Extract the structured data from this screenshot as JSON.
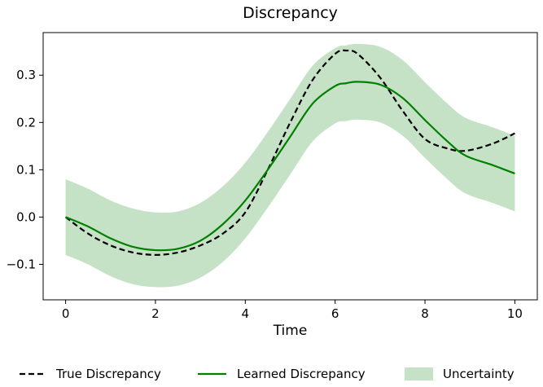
{
  "chart_data": {
    "type": "line",
    "title": "Discrepancy",
    "xlabel": "Time",
    "ylabel": "",
    "xlim": [
      -0.5,
      10.5
    ],
    "ylim": [
      -0.175,
      0.39
    ],
    "xticks": [
      0,
      2,
      4,
      6,
      8,
      10
    ],
    "yticks": [
      -0.1,
      0.0,
      0.1,
      0.2,
      0.3
    ],
    "ytick_labels": [
      "−0.1",
      "0.0",
      "0.1",
      "0.2",
      "0.3"
    ],
    "grid": false,
    "legend_position": "bottom",
    "x": [
      0,
      0.5,
      1,
      1.5,
      2,
      2.5,
      3,
      3.5,
      4,
      4.5,
      5,
      5.5,
      6,
      6.25,
      6.5,
      7,
      7.5,
      8,
      8.5,
      8.9,
      9.5,
      10
    ],
    "series": [
      {
        "name": "True Discrepancy",
        "style": "dashed",
        "color": "#000000",
        "values": [
          0.0,
          -0.035,
          -0.06,
          -0.075,
          -0.08,
          -0.075,
          -0.06,
          -0.035,
          0.01,
          0.1,
          0.2,
          0.29,
          0.345,
          0.352,
          0.345,
          0.295,
          0.225,
          0.165,
          0.145,
          0.14,
          0.155,
          0.177
        ]
      },
      {
        "name": "Learned Discrepancy",
        "style": "solid",
        "color": "#008000",
        "values": [
          0.0,
          -0.02,
          -0.045,
          -0.063,
          -0.07,
          -0.067,
          -0.05,
          -0.015,
          0.035,
          0.1,
          0.17,
          0.24,
          0.277,
          0.283,
          0.286,
          0.28,
          0.252,
          0.205,
          0.16,
          0.13,
          0.11,
          0.092
        ]
      }
    ],
    "band": {
      "name": "Uncertainty",
      "color": "#c6e2c6",
      "lower": [
        -0.08,
        -0.1,
        -0.125,
        -0.142,
        -0.148,
        -0.145,
        -0.128,
        -0.095,
        -0.045,
        0.02,
        0.09,
        0.16,
        0.198,
        0.203,
        0.206,
        0.2,
        0.172,
        0.125,
        0.08,
        0.05,
        0.03,
        0.012
      ],
      "upper": [
        0.08,
        0.06,
        0.035,
        0.018,
        0.01,
        0.012,
        0.03,
        0.065,
        0.115,
        0.18,
        0.25,
        0.32,
        0.357,
        0.363,
        0.366,
        0.36,
        0.332,
        0.285,
        0.24,
        0.21,
        0.19,
        0.172
      ]
    }
  }
}
